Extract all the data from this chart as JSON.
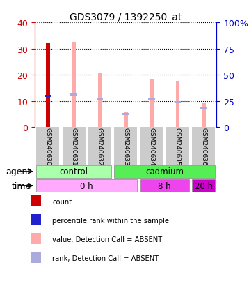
{
  "title": "GDS3079 / 1392250_at",
  "samples": [
    "GSM240630",
    "GSM240631",
    "GSM240632",
    "GSM240633",
    "GSM240634",
    "GSM240635",
    "GSM240636"
  ],
  "value_absent": [
    0,
    32.5,
    20.5,
    6.0,
    18.5,
    17.5,
    9.0
  ],
  "rank_absent": [
    0,
    12.5,
    10.5,
    5.0,
    10.5,
    9.5,
    7.0
  ],
  "count_present": [
    32.0,
    0,
    0,
    0,
    0,
    0,
    0
  ],
  "rank_present": [
    12.0,
    0,
    0,
    0,
    0,
    0,
    0
  ],
  "ylim": [
    0,
    40
  ],
  "yticks": [
    0,
    10,
    20,
    30,
    40
  ],
  "yticks_right": [
    0,
    25,
    50,
    75,
    100
  ],
  "ytick_labels_right": [
    "0",
    "25",
    "50",
    "75",
    "100%"
  ],
  "color_count": "#cc0000",
  "color_rank_present": "#2222cc",
  "color_value_absent": "#ffaaaa",
  "color_rank_absent": "#aaaadd",
  "agent_control_color": "#aaffaa",
  "agent_cadmium_color": "#55ee55",
  "time_0h_color": "#ffaaff",
  "time_8h_color": "#ee44ee",
  "time_20h_color": "#cc00cc",
  "background_color": "#ffffff",
  "left_axis_color": "#cc0000",
  "right_axis_color": "#0000cc"
}
